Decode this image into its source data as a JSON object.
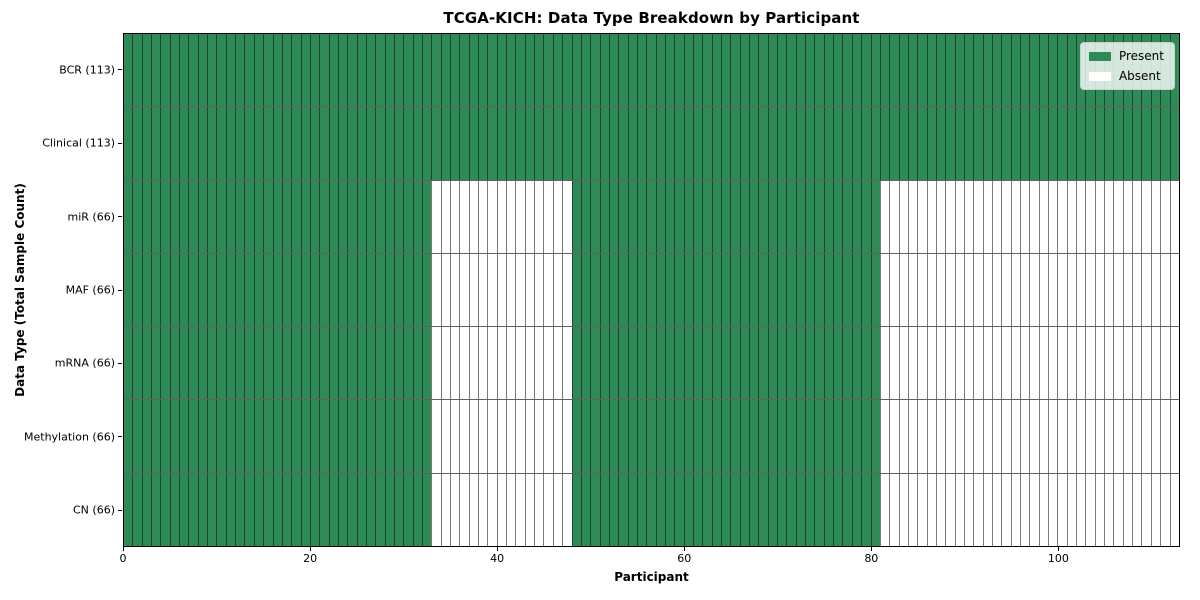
{
  "chart_data": {
    "type": "heatmap",
    "title": "TCGA-KICH: Data Type Breakdown by Participant",
    "xlabel": "Participant",
    "ylabel": "Data Type (Total Sample Count)",
    "x_ticks": [
      0,
      20,
      40,
      60,
      80,
      100
    ],
    "x_range": [
      0,
      113
    ],
    "n_participants": 113,
    "grid": "cell-borders",
    "legend_position": "upper-right",
    "colors": {
      "present": "#2e8b57",
      "absent": "#ffffff",
      "cell_edge": "rgba(15,15,15,0.55)",
      "plot_border": "#000000"
    },
    "legend": [
      {
        "label": "Present",
        "color": "#2e8b57"
      },
      {
        "label": "Absent",
        "color": "#ffffff"
      }
    ],
    "rows": [
      {
        "label": "BCR (113)",
        "sample_count": 113,
        "present_ranges": [
          [
            0,
            113
          ]
        ]
      },
      {
        "label": "Clinical (113)",
        "sample_count": 113,
        "present_ranges": [
          [
            0,
            113
          ]
        ]
      },
      {
        "label": "miR (66)",
        "sample_count": 66,
        "present_ranges": [
          [
            0,
            33
          ],
          [
            48,
            81
          ]
        ]
      },
      {
        "label": "MAF (66)",
        "sample_count": 66,
        "present_ranges": [
          [
            0,
            33
          ],
          [
            48,
            81
          ]
        ]
      },
      {
        "label": "mRNA (66)",
        "sample_count": 66,
        "present_ranges": [
          [
            0,
            33
          ],
          [
            48,
            81
          ]
        ]
      },
      {
        "label": "Methylation (66)",
        "sample_count": 66,
        "present_ranges": [
          [
            0,
            33
          ],
          [
            48,
            81
          ]
        ]
      },
      {
        "label": "CN (66)",
        "sample_count": 66,
        "present_ranges": [
          [
            0,
            33
          ],
          [
            48,
            81
          ]
        ]
      }
    ]
  }
}
